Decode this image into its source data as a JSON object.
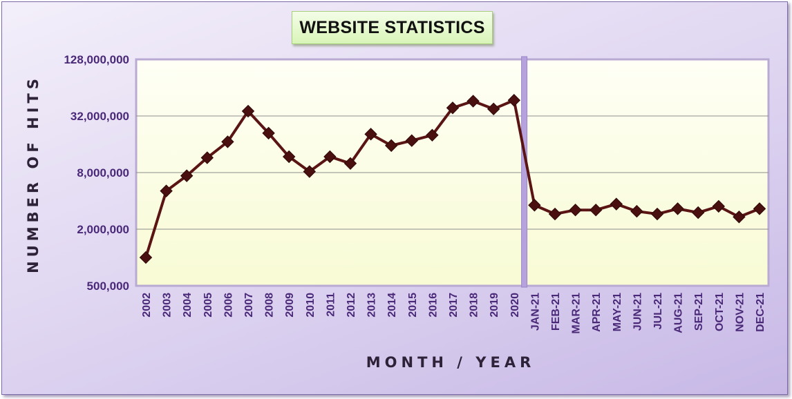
{
  "chart_data": {
    "type": "line",
    "title": "WEBSITE STATISTICS",
    "xlabel": "MONTH / YEAR",
    "ylabel": "NUMBER OF HITS",
    "y_scale": "log2",
    "ylim": [
      500000,
      128000000
    ],
    "yticks": [
      500000,
      2000000,
      8000000,
      32000000,
      128000000
    ],
    "ytick_labels": [
      "500,000",
      "2,000,000",
      "8,000,000",
      "32,000,000",
      "128,000,000"
    ],
    "grid": true,
    "categories": [
      "2002",
      "2003",
      "2004",
      "2005",
      "2006",
      "2007",
      "2008",
      "2009",
      "2010",
      "2011",
      "2012",
      "2013",
      "2014",
      "2015",
      "2016",
      "2017",
      "2018",
      "2019",
      "2020",
      "JAN-21",
      "FEB-21",
      "MAR-21",
      "APR-21",
      "MAY-21",
      "JUN-21",
      "JUL-21",
      "AUG-21",
      "SEP-21",
      "OCT-21",
      "NOV-21",
      "DEC-21"
    ],
    "series": [
      {
        "values": [
          1000000,
          5100000,
          7400000,
          11500000,
          17000000,
          36000000,
          21000000,
          11800000,
          8200000,
          11800000,
          10000000,
          20500000,
          15500000,
          17500000,
          20000000,
          39000000,
          46000000,
          38000000,
          47000000,
          3600000,
          2900000,
          3200000,
          3200000,
          3700000,
          3100000,
          2900000,
          3300000,
          3000000,
          3500000,
          2700000,
          3300000
        ]
      }
    ],
    "colors": {
      "line": "#5a1414",
      "marker": "#4a1010",
      "plot_background": "#fcfde0",
      "frame_border": "#7b6aa6",
      "divider": "#b6a2dc",
      "tick_text": "#4a2878",
      "axis_title": "#2d2238"
    }
  }
}
